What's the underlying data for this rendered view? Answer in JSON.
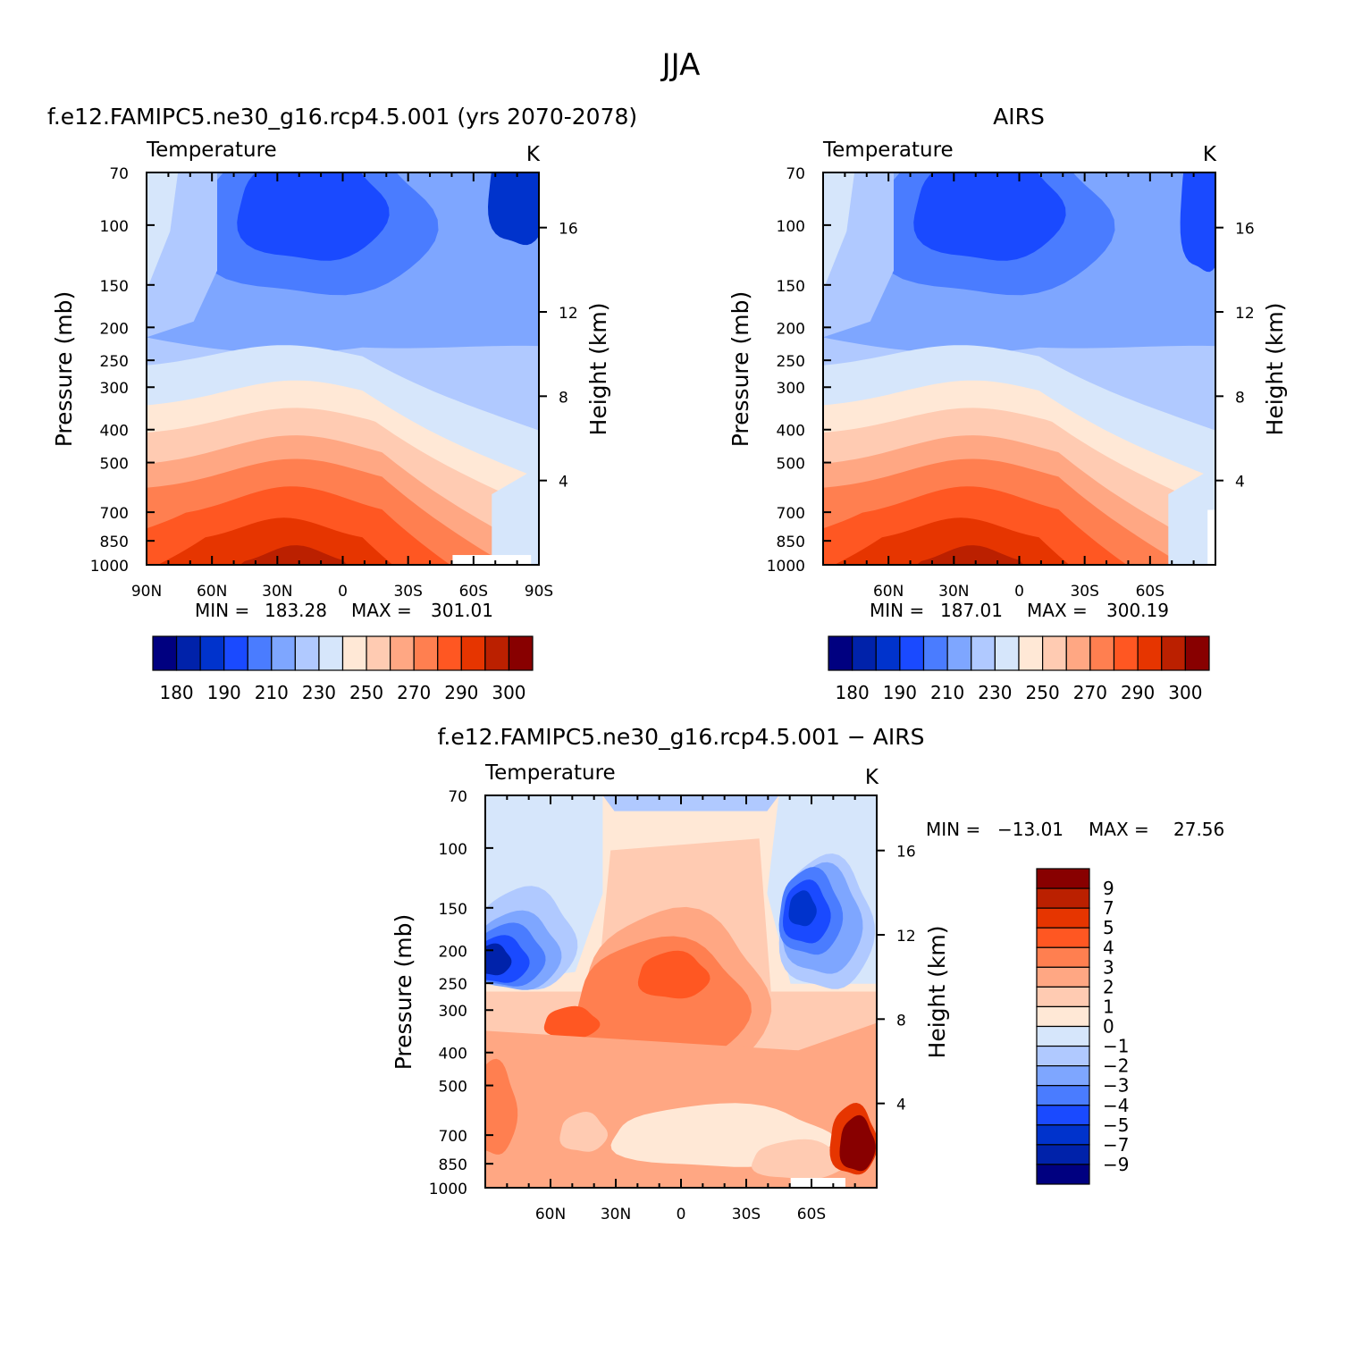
{
  "title": "JJA",
  "colors": {
    "abs_levels": [
      "#000080",
      "#0022aa",
      "#0033cc",
      "#1a4aff",
      "#4a7cff",
      "#7ea6ff",
      "#b0c9ff",
      "#d6e6fb",
      "#ffe8d6",
      "#ffcbb2",
      "#ffa783",
      "#ff7f50",
      "#ff5722",
      "#e63500",
      "#bb2000",
      "#880000"
    ],
    "diff_levels": [
      "#000080",
      "#0022aa",
      "#0033cc",
      "#1a4aff",
      "#4a7cff",
      "#7ea6ff",
      "#b0c9ff",
      "#d6e6fb",
      "#ffe8d6",
      "#ffcbb2",
      "#ffa783",
      "#ff7f50",
      "#ff5722",
      "#e63500",
      "#bb2000",
      "#880000"
    ]
  },
  "chart_data": [
    {
      "type": "contour",
      "title": "f.e12.FAMIPC5.ne30_g16.rcp4.5.001 (yrs 2070-2078)",
      "left_string": "Temperature",
      "right_string": "K",
      "ylabel": "Pressure (mb)",
      "y2label": "Height (km)",
      "yticks": [
        70,
        100,
        150,
        200,
        250,
        300,
        400,
        500,
        700,
        850,
        1000
      ],
      "y2ticks": [
        16,
        12,
        8,
        4
      ],
      "xticks": [
        "90N",
        "60N",
        "30N",
        "0",
        "30S",
        "60S",
        "90S"
      ],
      "xlim": [
        90,
        -90
      ],
      "ylim": [
        1000,
        70
      ],
      "min_label": "MIN =",
      "min": "183.28",
      "max_label": "MAX =",
      "max": "301.01",
      "colorbar_labels": [
        "180",
        "190",
        "210",
        "230",
        "250",
        "270",
        "290",
        "300"
      ]
    },
    {
      "type": "contour",
      "title": "AIRS",
      "left_string": "Temperature",
      "right_string": "K",
      "ylabel": "Pressure (mb)",
      "y2label": "Height (km)",
      "yticks": [
        70,
        100,
        150,
        200,
        250,
        300,
        400,
        500,
        700,
        850,
        1000
      ],
      "y2ticks": [
        16,
        12,
        8,
        4
      ],
      "xticks": [
        "60N",
        "30N",
        "0",
        "30S",
        "60S"
      ],
      "xlim": [
        90,
        -90
      ],
      "ylim": [
        1000,
        70
      ],
      "min_label": "MIN =",
      "min": "187.01",
      "max_label": "MAX =",
      "max": "300.19",
      "colorbar_labels": [
        "180",
        "190",
        "210",
        "230",
        "250",
        "270",
        "290",
        "300"
      ]
    },
    {
      "type": "contour",
      "title": "f.e12.FAMIPC5.ne30_g16.rcp4.5.001 − AIRS",
      "left_string": "Temperature",
      "right_string": "K",
      "ylabel": "Pressure (mb)",
      "y2label": "Height (km)",
      "yticks": [
        70,
        100,
        150,
        200,
        250,
        300,
        400,
        500,
        700,
        850,
        1000
      ],
      "y2ticks": [
        16,
        12,
        8,
        4
      ],
      "xticks": [
        "60N",
        "30N",
        "0",
        "30S",
        "60S"
      ],
      "xlim": [
        90,
        -90
      ],
      "ylim": [
        1000,
        70
      ],
      "min_label": "MIN =",
      "min": "−13.01",
      "max_label": "MAX =",
      "max": "27.56",
      "colorbar_labels": [
        "9",
        "7",
        "5",
        "4",
        "3",
        "2",
        "1",
        "0",
        "−1",
        "−2",
        "−3",
        "−4",
        "−5",
        "−7",
        "−9"
      ]
    }
  ]
}
